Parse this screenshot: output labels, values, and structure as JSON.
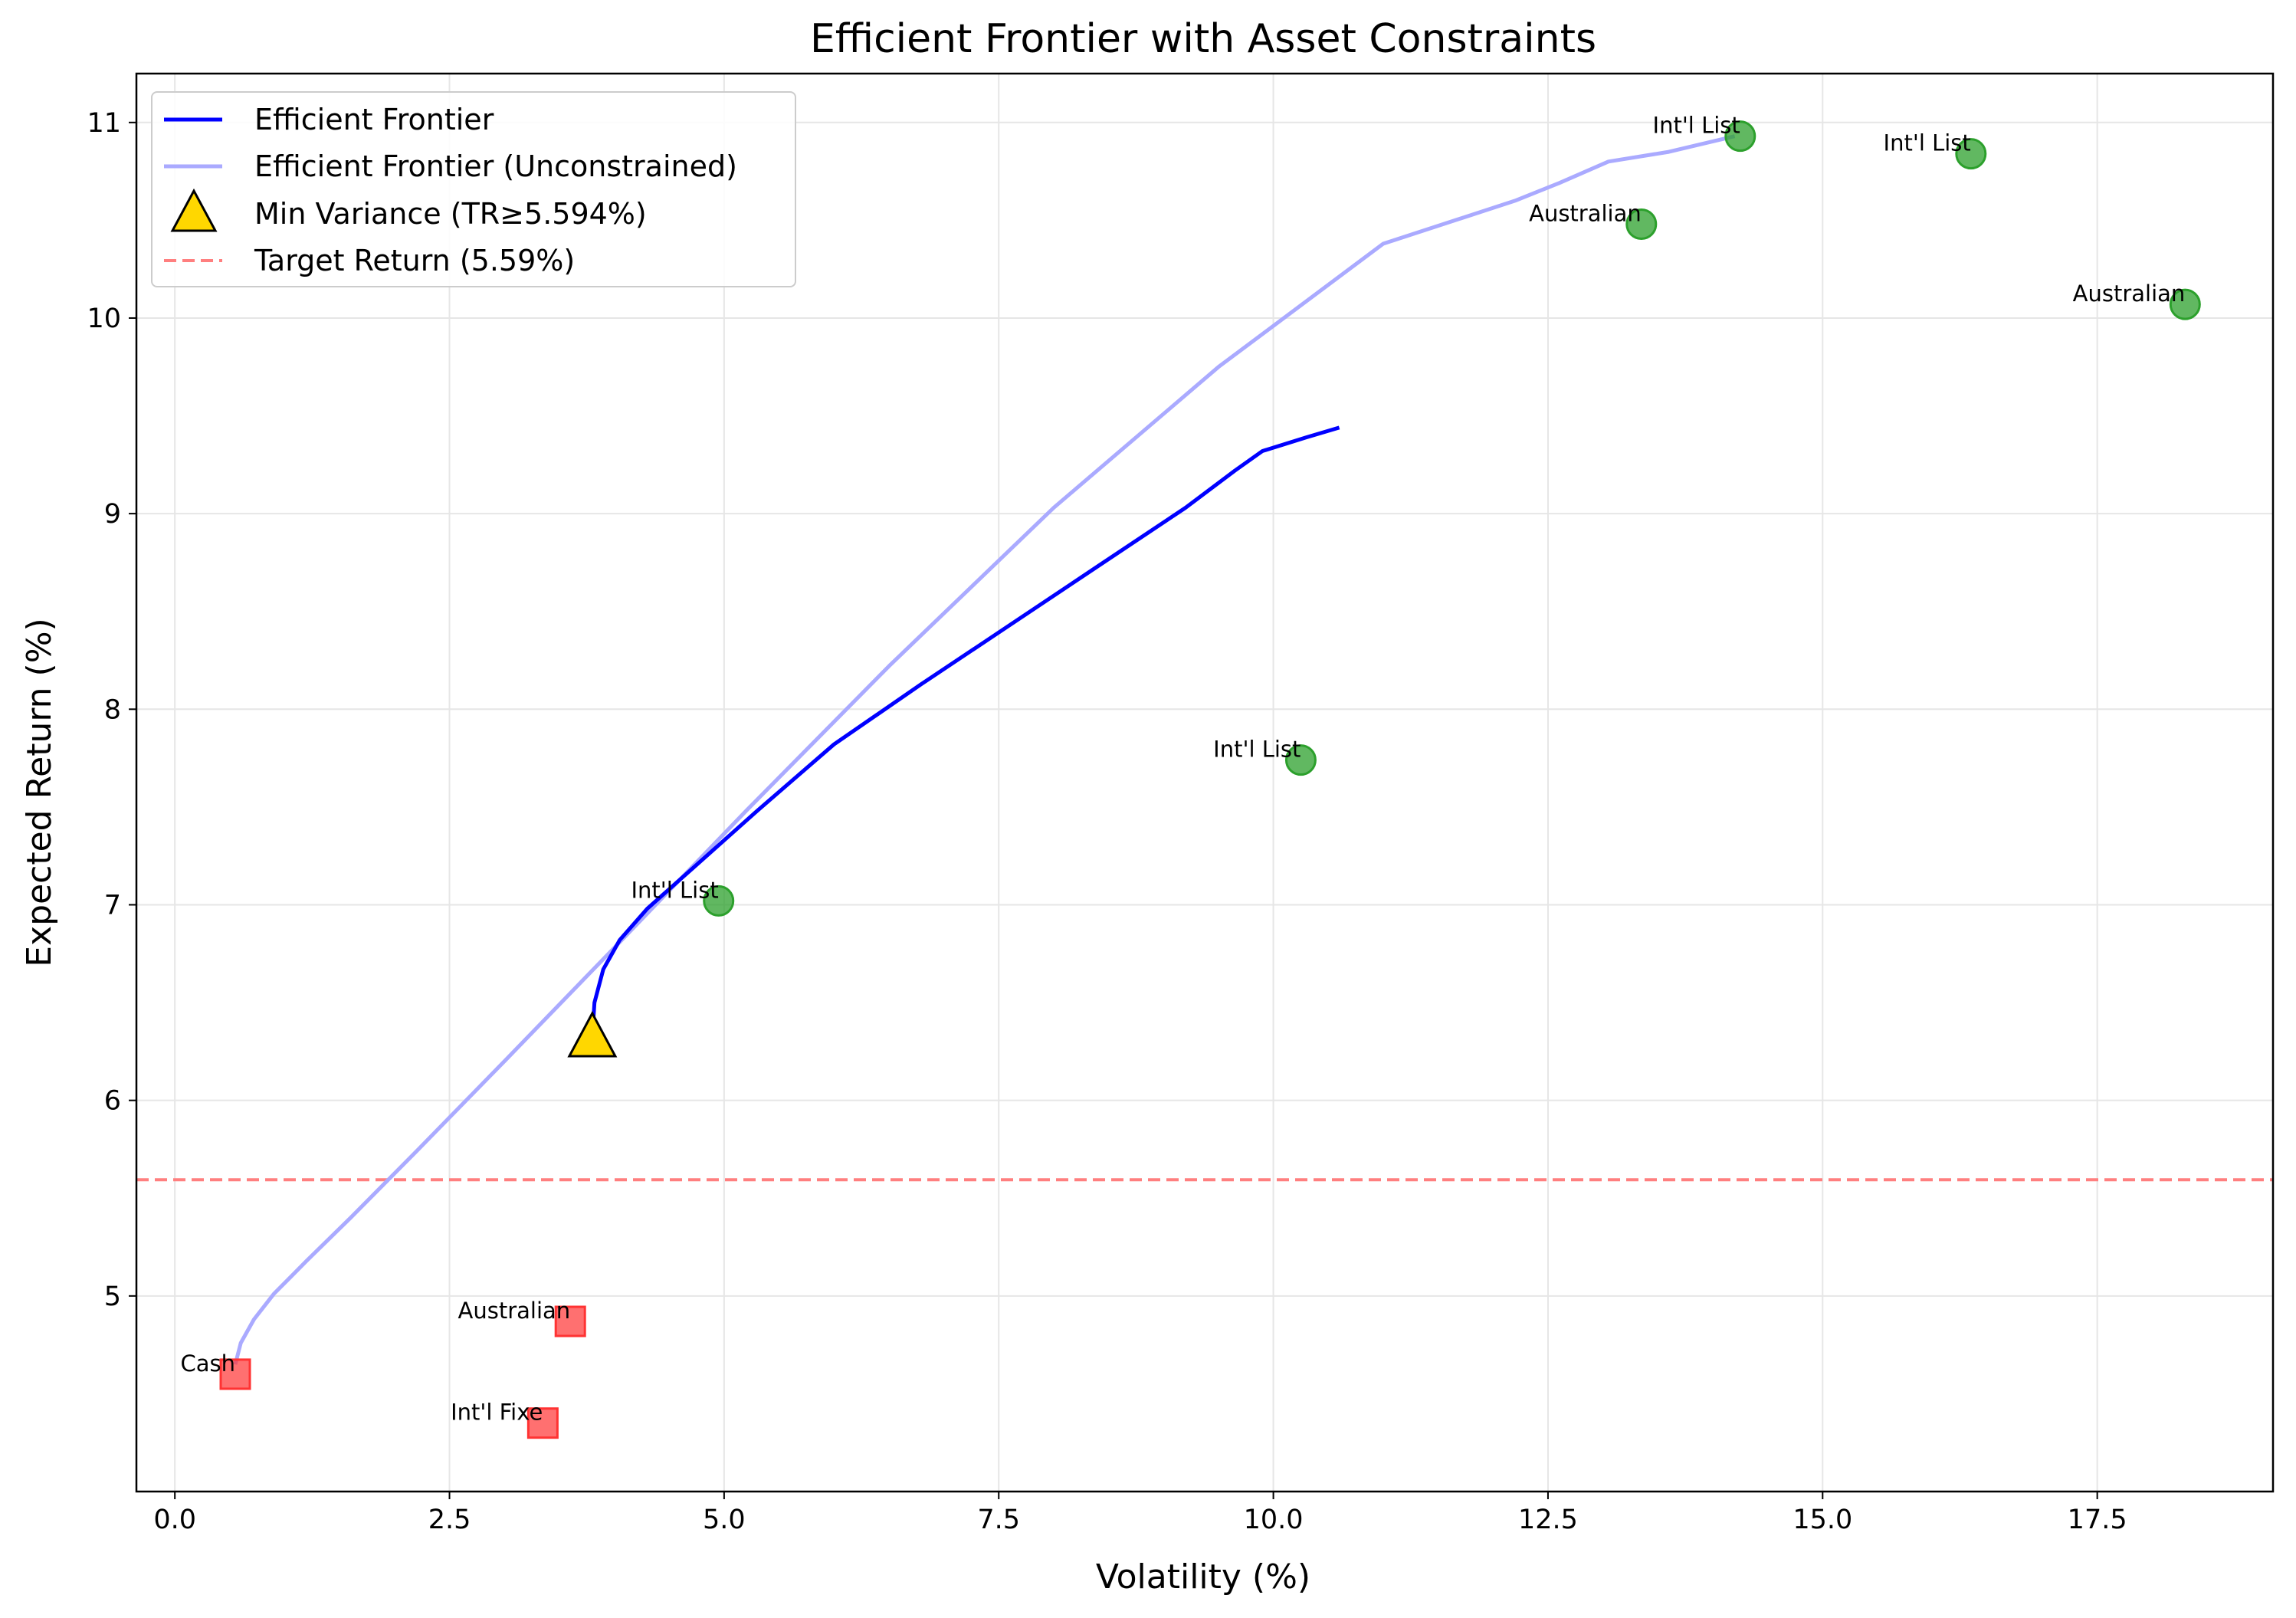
{
  "chart_data": {
    "type": "scatter",
    "title": "Efficient Frontier with Asset Constraints",
    "xlabel": "Volatility (%)",
    "ylabel": "Expected Return (%)",
    "xlim": [
      -0.35,
      19.1
    ],
    "ylim": [
      4.0,
      11.25
    ],
    "xticks": [
      0.0,
      2.5,
      5.0,
      7.5,
      10.0,
      12.5,
      15.0,
      17.5
    ],
    "xtick_labels": [
      "0.0",
      "2.5",
      "5.0",
      "7.5",
      "10.0",
      "12.5",
      "15.0",
      "17.5"
    ],
    "yticks": [
      5,
      6,
      7,
      8,
      9,
      10,
      11
    ],
    "ytick_labels": [
      "5",
      "6",
      "7",
      "8",
      "9",
      "10",
      "11"
    ],
    "grid": true,
    "legend_position": "top-left",
    "series": [
      {
        "name": "Efficient Frontier",
        "kind": "line",
        "color": "#0000ff",
        "x": [
          3.8,
          3.82,
          3.9,
          4.05,
          4.3,
          4.7,
          5.3,
          6.0,
          6.8,
          7.6,
          8.4,
          9.2,
          9.65,
          9.9,
          10.3,
          10.6
        ],
        "y": [
          6.33,
          6.5,
          6.67,
          6.82,
          6.98,
          7.18,
          7.48,
          7.82,
          8.13,
          8.43,
          8.73,
          9.03,
          9.22,
          9.32,
          9.39,
          9.44
        ]
      },
      {
        "name": "Efficient Frontier (Unconstrained)",
        "kind": "line",
        "color": "#aaaaff",
        "x": [
          0.55,
          0.6,
          0.72,
          0.9,
          1.2,
          1.6,
          2.2,
          3.0,
          4.0,
          5.2,
          6.5,
          8.0,
          9.5,
          11.0,
          12.2,
          12.6,
          13.05,
          13.6,
          14.2
        ],
        "y": [
          4.65,
          4.76,
          4.88,
          5.01,
          5.18,
          5.4,
          5.74,
          6.2,
          6.78,
          7.48,
          8.22,
          9.03,
          9.75,
          10.38,
          10.6,
          10.69,
          10.8,
          10.85,
          10.93
        ]
      },
      {
        "name": "Min Variance (TR≥5.594%)",
        "kind": "marker",
        "marker": "triangle",
        "color": "#ffd700",
        "x": [
          3.8
        ],
        "y": [
          6.32
        ]
      },
      {
        "name": "Target Return (5.59%)",
        "kind": "hline",
        "color": "#ff7f7f",
        "y": 5.594
      }
    ],
    "assets_green": [
      {
        "label": "Int'l List",
        "x": 4.95,
        "y": 7.02
      },
      {
        "label": "Int'l List",
        "x": 10.25,
        "y": 7.74
      },
      {
        "label": "Australian",
        "x": 13.35,
        "y": 10.48
      },
      {
        "label": "Int'l List",
        "x": 14.25,
        "y": 10.93
      },
      {
        "label": "Int'l List",
        "x": 16.35,
        "y": 10.84
      },
      {
        "label": "Australian",
        "x": 18.3,
        "y": 10.07
      }
    ],
    "assets_red": [
      {
        "label": "Cash",
        "x": 0.55,
        "y": 4.6
      },
      {
        "label": "Australian",
        "x": 3.6,
        "y": 4.87
      },
      {
        "label": "Int'l Fixe",
        "x": 3.35,
        "y": 4.35
      }
    ],
    "colors": {
      "green_asset": "#2ca02c",
      "red_asset": "#ff3333",
      "grid": "#e6e6e6"
    }
  }
}
